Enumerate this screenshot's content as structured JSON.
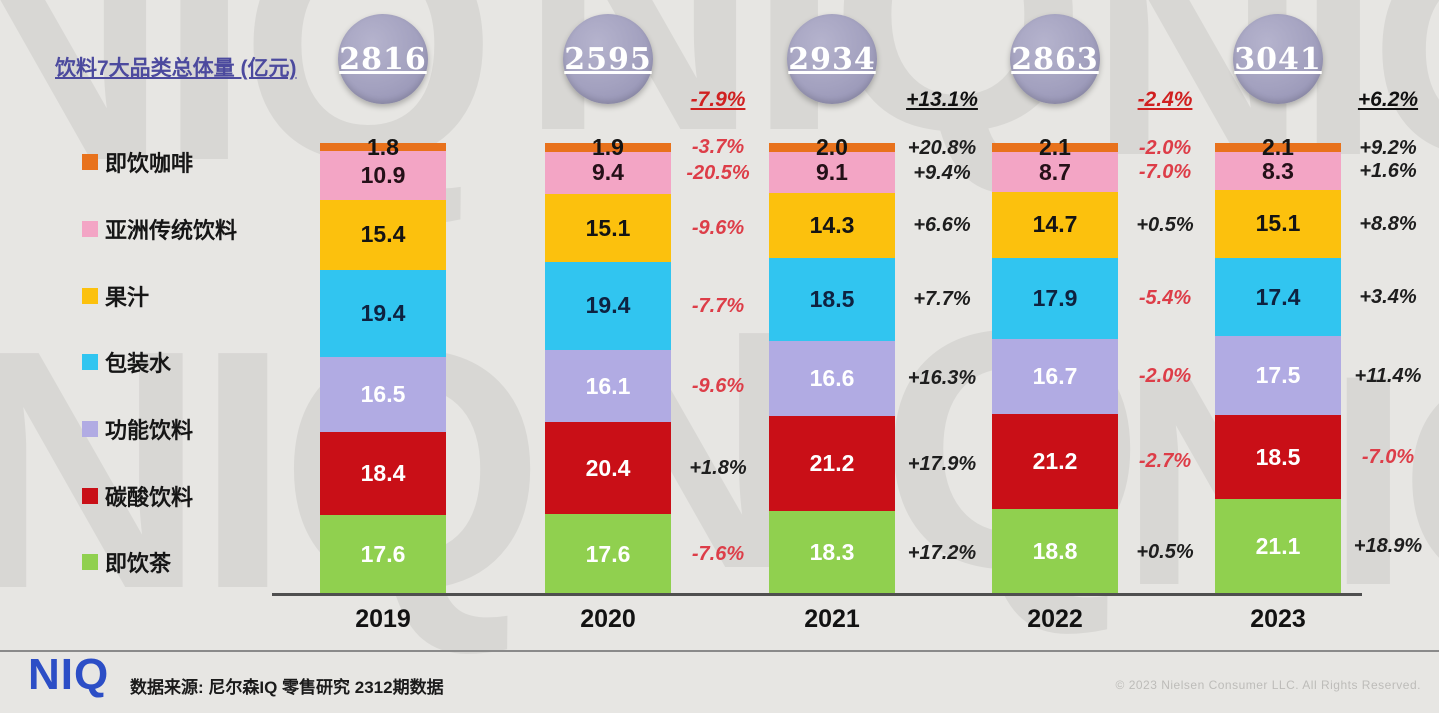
{
  "title": "饮料7大品类总体量 (亿元)",
  "chart_data": {
    "type": "bar",
    "subtype": "stacked-100-percent",
    "title": "饮料7大品类总体量 (亿元)",
    "unit": "亿元",
    "legend_position": "left",
    "grid": false,
    "categories": [
      "2019",
      "2020",
      "2021",
      "2022",
      "2023"
    ],
    "totals": [
      "2816",
      "2595",
      "2934",
      "2863",
      "3041"
    ],
    "total_changes": [
      null,
      "-7.9%",
      "+13.1%",
      "-2.4%",
      "+6.2%"
    ],
    "series": [
      {
        "name": "即饮咖啡",
        "color": "#e8721c",
        "value_color": "#141414",
        "values": [
          1.8,
          1.9,
          2.0,
          2.1,
          2.1
        ],
        "changes": [
          null,
          "-3.7%",
          "+20.8%",
          "-2.0%",
          "+9.2%"
        ]
      },
      {
        "name": "亚洲传统饮料",
        "color": "#f3a5c5",
        "value_color": "#241018",
        "values": [
          10.9,
          9.4,
          9.1,
          8.7,
          8.3
        ],
        "changes": [
          null,
          "-20.5%",
          "+9.4%",
          "-7.0%",
          "+1.6%"
        ]
      },
      {
        "name": "果汁",
        "color": "#fcc10d",
        "value_color": "#141414",
        "values": [
          15.4,
          15.1,
          14.3,
          14.7,
          15.1
        ],
        "changes": [
          null,
          "-9.6%",
          "+6.6%",
          "+0.5%",
          "+8.8%"
        ]
      },
      {
        "name": "包装水",
        "color": "#31c5f0",
        "value_color": "#0e2240",
        "values": [
          19.4,
          19.4,
          18.5,
          17.9,
          17.4
        ],
        "changes": [
          null,
          "-7.7%",
          "+7.7%",
          "-5.4%",
          "+3.4%"
        ]
      },
      {
        "name": "功能饮料",
        "color": "#b1abe3",
        "value_color": "#ffffff",
        "values": [
          16.5,
          16.1,
          16.6,
          16.7,
          17.5
        ],
        "changes": [
          null,
          "-9.6%",
          "+16.3%",
          "-2.0%",
          "+11.4%"
        ]
      },
      {
        "name": "碳酸饮料",
        "color": "#c90f17",
        "value_color": "#ffffff",
        "values": [
          18.4,
          20.4,
          21.2,
          21.2,
          18.5
        ],
        "changes": [
          null,
          "+1.8%",
          "+17.9%",
          "-2.7%",
          "-7.0%"
        ]
      },
      {
        "name": "即饮茶",
        "color": "#90d04f",
        "value_color": "#ffffff",
        "values": [
          17.6,
          17.6,
          18.3,
          18.8,
          21.1
        ],
        "changes": [
          null,
          "-7.6%",
          "+17.2%",
          "+0.5%",
          "+18.9%"
        ]
      }
    ]
  },
  "style": {
    "negative_change_color": "#dd3d48",
    "positive_change_color": "#1e1e1e",
    "negative_total_color": "#d02020",
    "positive_total_color": "#111111",
    "circle_fill": "#a3a1bf",
    "title_color": "#4c4a9e"
  },
  "watermark_text": "NIQ",
  "footer": {
    "logo": "NIQ",
    "source": "数据来源: 尼尔森IQ 零售研究 2312期数据",
    "copyright": "© 2023 Nielsen Consumer LLC. All Rights Reserved."
  }
}
